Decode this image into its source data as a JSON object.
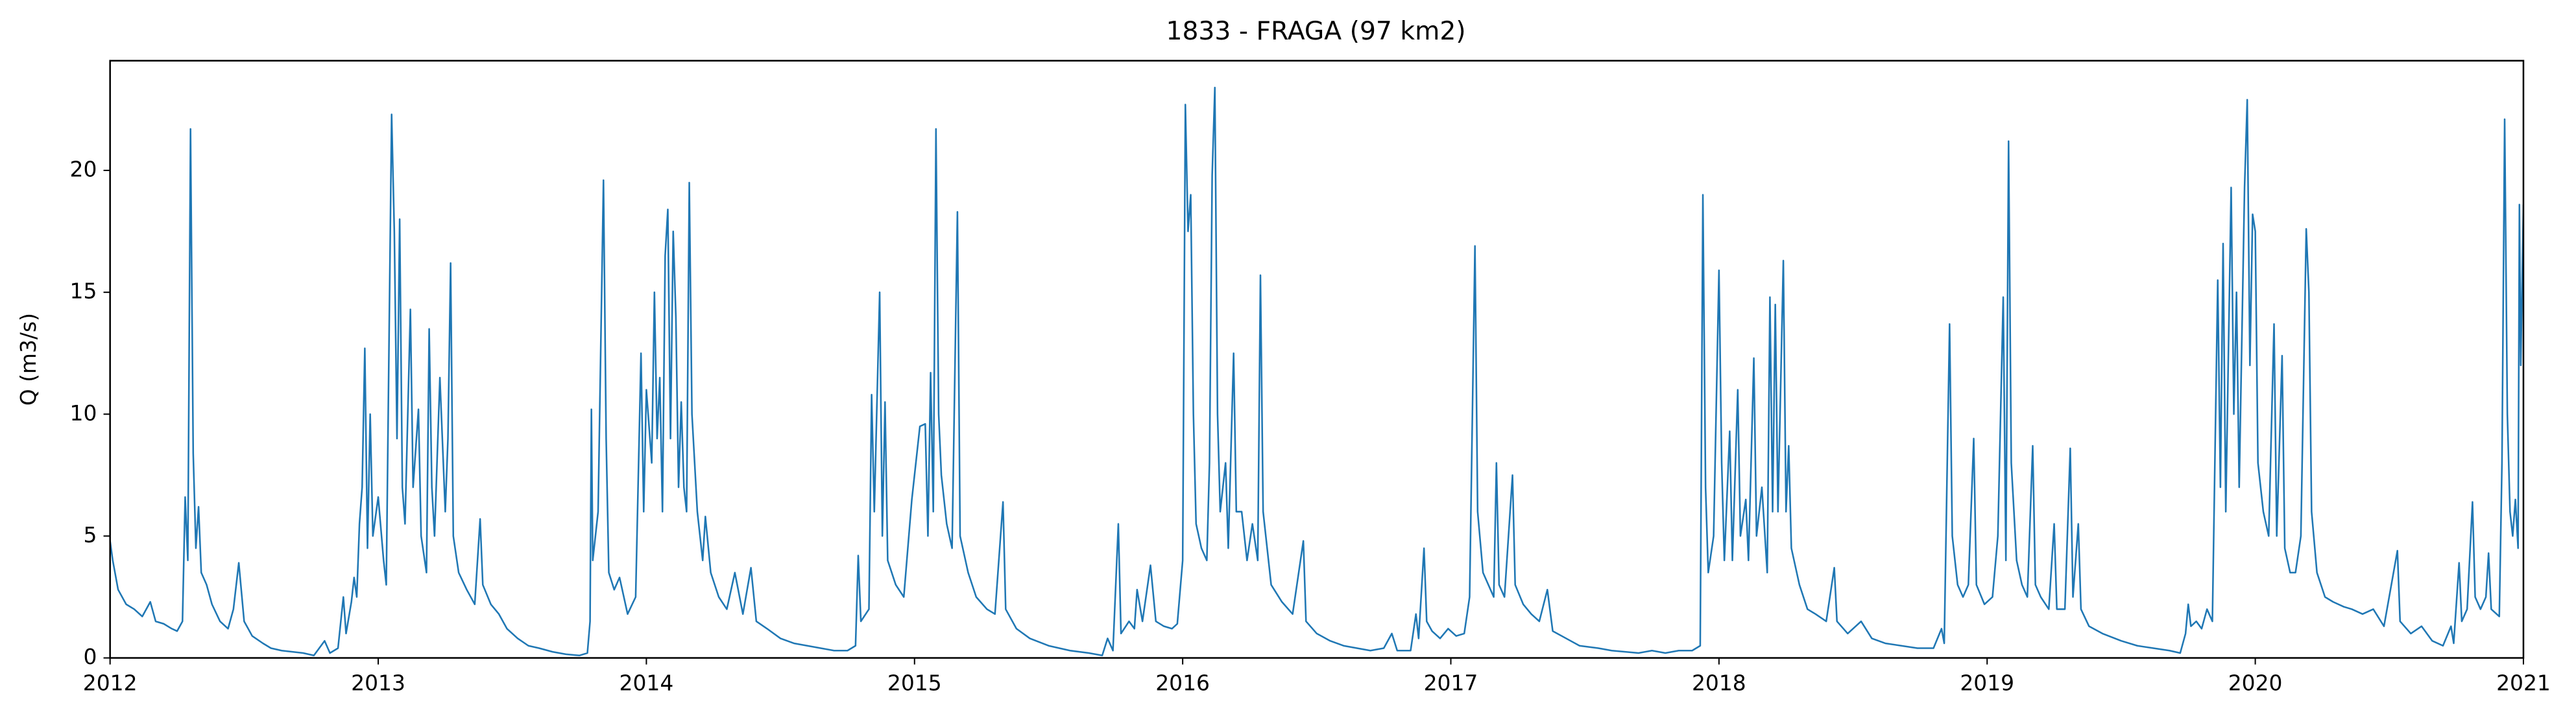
{
  "chart_data": {
    "type": "line",
    "title": "1833 - FRAGA (97 km2)",
    "y_label": "Q (m3/s)",
    "x": [
      2012.0,
      2012.01,
      2012.03,
      2012.06,
      2012.09,
      2012.12,
      2012.15,
      2012.17,
      2012.2,
      2012.23,
      2012.25,
      2012.27,
      2012.28,
      2012.29,
      2012.3,
      2012.31,
      2012.32,
      2012.33,
      2012.34,
      2012.36,
      2012.38,
      2012.41,
      2012.44,
      2012.46,
      2012.48,
      2012.5,
      2012.53,
      2012.57,
      2012.6,
      2012.64,
      2012.68,
      2012.72,
      2012.76,
      2012.8,
      2012.82,
      2012.85,
      2012.87,
      2012.88,
      2012.9,
      2012.91,
      2012.92,
      2012.93,
      2012.94,
      2012.95,
      2012.96,
      2012.97,
      2012.98,
      2013.0,
      2013.02,
      2013.03,
      2013.05,
      2013.06,
      2013.07,
      2013.08,
      2013.09,
      2013.1,
      2013.12,
      2013.13,
      2013.15,
      2013.16,
      2013.18,
      2013.19,
      2013.2,
      2013.21,
      2013.23,
      2013.25,
      2013.26,
      2013.27,
      2013.28,
      2013.3,
      2013.33,
      2013.36,
      2013.38,
      2013.39,
      2013.42,
      2013.45,
      2013.48,
      2013.52,
      2013.56,
      2013.6,
      2013.65,
      2013.7,
      2013.75,
      2013.78,
      2013.79,
      2013.795,
      2013.8,
      2013.82,
      2013.84,
      2013.85,
      2013.86,
      2013.88,
      2013.9,
      2013.93,
      2013.96,
      2013.98,
      2013.99,
      2014.0,
      2014.02,
      2014.03,
      2014.04,
      2014.05,
      2014.06,
      2014.07,
      2014.08,
      2014.09,
      2014.1,
      2014.11,
      2014.12,
      2014.13,
      2014.14,
      2014.15,
      2014.16,
      2014.17,
      2014.19,
      2014.21,
      2014.22,
      2014.24,
      2014.27,
      2014.3,
      2014.33,
      2014.36,
      2014.39,
      2014.41,
      2014.45,
      2014.5,
      2014.55,
      2014.6,
      2014.65,
      2014.7,
      2014.75,
      2014.78,
      2014.79,
      2014.8,
      2014.83,
      2014.84,
      2014.85,
      2014.87,
      2014.88,
      2014.89,
      2014.9,
      2014.93,
      2014.96,
      2014.99,
      2015.02,
      2015.04,
      2015.05,
      2015.06,
      2015.07,
      2015.08,
      2015.09,
      2015.1,
      2015.12,
      2015.14,
      2015.16,
      2015.17,
      2015.2,
      2015.23,
      2015.27,
      2015.3,
      2015.33,
      2015.34,
      2015.38,
      2015.43,
      2015.5,
      2015.58,
      2015.65,
      2015.7,
      2015.72,
      2015.74,
      2015.76,
      2015.77,
      2015.8,
      2015.82,
      2015.83,
      2015.85,
      2015.88,
      2015.9,
      2015.93,
      2015.96,
      2015.98,
      2016.0,
      2016.01,
      2016.02,
      2016.03,
      2016.04,
      2016.05,
      2016.07,
      2016.09,
      2016.1,
      2016.11,
      2016.12,
      2016.13,
      2016.14,
      2016.16,
      2016.17,
      2016.19,
      2016.2,
      2016.22,
      2016.24,
      2016.26,
      2016.28,
      2016.29,
      2016.3,
      2016.33,
      2016.37,
      2016.41,
      2016.45,
      2016.46,
      2016.5,
      2016.55,
      2016.6,
      2016.65,
      2016.7,
      2016.75,
      2016.78,
      2016.8,
      2016.85,
      2016.87,
      2016.88,
      2016.9,
      2016.91,
      2016.93,
      2016.96,
      2016.99,
      2017.02,
      2017.05,
      2017.07,
      2017.09,
      2017.1,
      2017.12,
      2017.14,
      2017.16,
      2017.17,
      2017.18,
      2017.2,
      2017.23,
      2017.24,
      2017.27,
      2017.3,
      2017.33,
      2017.36,
      2017.38,
      2017.43,
      2017.48,
      2017.55,
      2017.6,
      2017.65,
      2017.7,
      2017.75,
      2017.8,
      2017.85,
      2017.9,
      2017.93,
      2017.94,
      2017.95,
      2017.96,
      2017.98,
      2018.0,
      2018.01,
      2018.02,
      2018.04,
      2018.05,
      2018.07,
      2018.08,
      2018.1,
      2018.11,
      2018.13,
      2018.14,
      2018.16,
      2018.18,
      2018.19,
      2018.2,
      2018.21,
      2018.22,
      2018.24,
      2018.25,
      2018.26,
      2018.27,
      2018.3,
      2018.33,
      2018.36,
      2018.4,
      2018.43,
      2018.44,
      2018.48,
      2018.53,
      2018.57,
      2018.62,
      2018.68,
      2018.74,
      2018.8,
      2018.83,
      2018.84,
      2018.86,
      2018.87,
      2018.89,
      2018.91,
      2018.93,
      2018.95,
      2018.96,
      2018.99,
      2019.02,
      2019.04,
      2019.06,
      2019.07,
      2019.08,
      2019.09,
      2019.11,
      2019.13,
      2019.15,
      2019.17,
      2019.18,
      2019.2,
      2019.23,
      2019.25,
      2019.26,
      2019.29,
      2019.31,
      2019.32,
      2019.34,
      2019.35,
      2019.38,
      2019.43,
      2019.5,
      2019.56,
      2019.62,
      2019.68,
      2019.72,
      2019.74,
      2019.75,
      2019.76,
      2019.78,
      2019.8,
      2019.82,
      2019.84,
      2019.86,
      2019.87,
      2019.88,
      2019.89,
      2019.91,
      2019.92,
      2019.93,
      2019.94,
      2019.96,
      2019.97,
      2019.98,
      2019.99,
      2020.0,
      2020.01,
      2020.03,
      2020.05,
      2020.07,
      2020.08,
      2020.1,
      2020.11,
      2020.13,
      2020.15,
      2020.17,
      2020.19,
      2020.2,
      2020.21,
      2020.23,
      2020.26,
      2020.29,
      2020.33,
      2020.36,
      2020.4,
      2020.44,
      2020.48,
      2020.53,
      2020.54,
      2020.58,
      2020.62,
      2020.66,
      2020.7,
      2020.73,
      2020.74,
      2020.76,
      2020.77,
      2020.79,
      2020.81,
      2020.82,
      2020.84,
      2020.86,
      2020.87,
      2020.88,
      2020.9,
      2020.91,
      2020.92,
      2020.93,
      2020.94,
      2020.95,
      2020.96,
      2020.97,
      2020.98,
      2020.985,
      2020.99,
      2021.0
    ],
    "values": [
      4.8,
      4.0,
      2.8,
      2.2,
      2.0,
      1.7,
      2.3,
      1.5,
      1.4,
      1.2,
      1.1,
      1.5,
      6.6,
      4,
      21.7,
      8.4,
      4.5,
      6.2,
      3.5,
      3.0,
      2.2,
      1.5,
      1.2,
      2.0,
      3.9,
      1.5,
      0.9,
      0.6,
      0.4,
      0.3,
      0.25,
      0.2,
      0.1,
      0.7,
      0.2,
      0.4,
      2.5,
      1.0,
      2.3,
      3.3,
      2.5,
      5.5,
      7.0,
      12.7,
      4.5,
      10.0,
      5.0,
      6.6,
      4.0,
      3.0,
      22.3,
      17.5,
      9,
      18.0,
      7,
      5.5,
      14.3,
      7,
      10.2,
      5.0,
      3.5,
      13.5,
      7,
      5,
      11.5,
      6,
      9,
      16.2,
      5,
      3.5,
      2.8,
      2.2,
      5.7,
      3,
      2.2,
      1.8,
      1.2,
      0.8,
      0.5,
      0.4,
      0.25,
      0.15,
      0.1,
      0.2,
      1.5,
      10.2,
      4,
      6,
      19.6,
      9,
      3.5,
      2.8,
      3.3,
      1.8,
      2.5,
      12.5,
      6,
      11,
      8,
      15.0,
      9,
      11.5,
      6,
      16.5,
      18.4,
      9,
      17.5,
      14,
      7,
      10.5,
      7,
      6,
      19.5,
      10,
      6,
      4,
      5.8,
      3.5,
      2.5,
      2,
      3.5,
      1.8,
      3.7,
      1.5,
      1.2,
      0.8,
      0.6,
      0.5,
      0.4,
      0.3,
      0.3,
      0.5,
      4.2,
      1.5,
      2,
      10.8,
      6,
      15,
      5,
      10.5,
      4,
      3,
      2.5,
      6.5,
      9.5,
      9.6,
      5,
      11.7,
      6,
      21.7,
      10,
      7.5,
      5.5,
      4.5,
      18.3,
      5,
      3.5,
      2.5,
      2,
      1.8,
      6.4,
      2,
      1.2,
      0.8,
      0.5,
      0.3,
      0.2,
      0.1,
      0.8,
      0.3,
      5.5,
      1,
      1.5,
      1.2,
      2.8,
      1.5,
      3.8,
      1.5,
      1.3,
      1.2,
      1.4,
      4,
      22.7,
      17.5,
      19,
      10,
      5.5,
      4.5,
      4,
      8,
      19.8,
      23.4,
      10,
      6,
      8,
      4.5,
      12.5,
      6,
      6,
      4,
      5.5,
      4,
      15.7,
      6,
      3,
      2.3,
      1.8,
      4.8,
      1.5,
      1,
      0.7,
      0.5,
      0.4,
      0.3,
      0.4,
      1.0,
      0.3,
      0.3,
      1.8,
      0.8,
      4.5,
      1.5,
      1.1,
      0.8,
      1.2,
      0.9,
      1.0,
      2.5,
      16.9,
      6,
      3.5,
      3,
      2.5,
      8.0,
      3,
      2.5,
      7.5,
      3,
      2.2,
      1.8,
      1.5,
      2.8,
      1.1,
      0.8,
      0.5,
      0.4,
      0.3,
      0.25,
      0.2,
      0.3,
      0.2,
      0.3,
      0.3,
      0.5,
      19.0,
      7,
      3.5,
      5,
      15.9,
      8,
      4,
      9.3,
      4,
      11,
      5,
      6.5,
      4,
      12.3,
      5,
      7,
      3.5,
      14.8,
      6,
      14.5,
      6,
      16.3,
      6,
      8.7,
      4.5,
      3,
      2,
      1.8,
      1.5,
      3.7,
      1.5,
      1,
      1.5,
      0.8,
      0.6,
      0.5,
      0.4,
      0.4,
      1.2,
      0.6,
      13.7,
      5,
      3,
      2.5,
      3,
      9.0,
      3,
      2.2,
      2.5,
      5,
      14.8,
      4,
      21.2,
      8,
      4,
      3,
      2.5,
      8.7,
      3,
      2.5,
      2.0,
      5.5,
      2,
      2.0,
      8.6,
      2.5,
      5.5,
      2,
      1.3,
      1,
      0.7,
      0.5,
      0.4,
      0.3,
      0.2,
      1.0,
      2.2,
      1.3,
      1.5,
      1.2,
      2,
      1.5,
      15.5,
      7,
      17,
      6,
      19.3,
      10,
      15,
      7,
      19.3,
      22.9,
      12,
      18.2,
      17.5,
      8,
      6,
      5,
      13.7,
      5,
      12.4,
      4.5,
      3.5,
      3.5,
      5,
      17.6,
      15,
      6,
      3.5,
      2.5,
      2.3,
      2.1,
      2.0,
      1.8,
      2.0,
      1.3,
      4.4,
      1.5,
      1.0,
      1.3,
      0.7,
      0.5,
      1.3,
      0.6,
      3.9,
      1.5,
      2,
      6.4,
      2.5,
      2,
      2.5,
      4.3,
      2,
      1.8,
      1.7,
      8,
      22.1,
      10,
      6,
      5,
      6.5,
      4.5,
      18.6,
      12,
      18.6
    ],
    "color": "#1f77b4",
    "xlim": [
      2012,
      2021
    ],
    "ylim": [
      0,
      24.5
    ],
    "xticks": [
      2012,
      2013,
      2014,
      2015,
      2016,
      2017,
      2018,
      2019,
      2020,
      2021
    ],
    "yticks": [
      0,
      5,
      10,
      15,
      20
    ],
    "grid": false
  }
}
